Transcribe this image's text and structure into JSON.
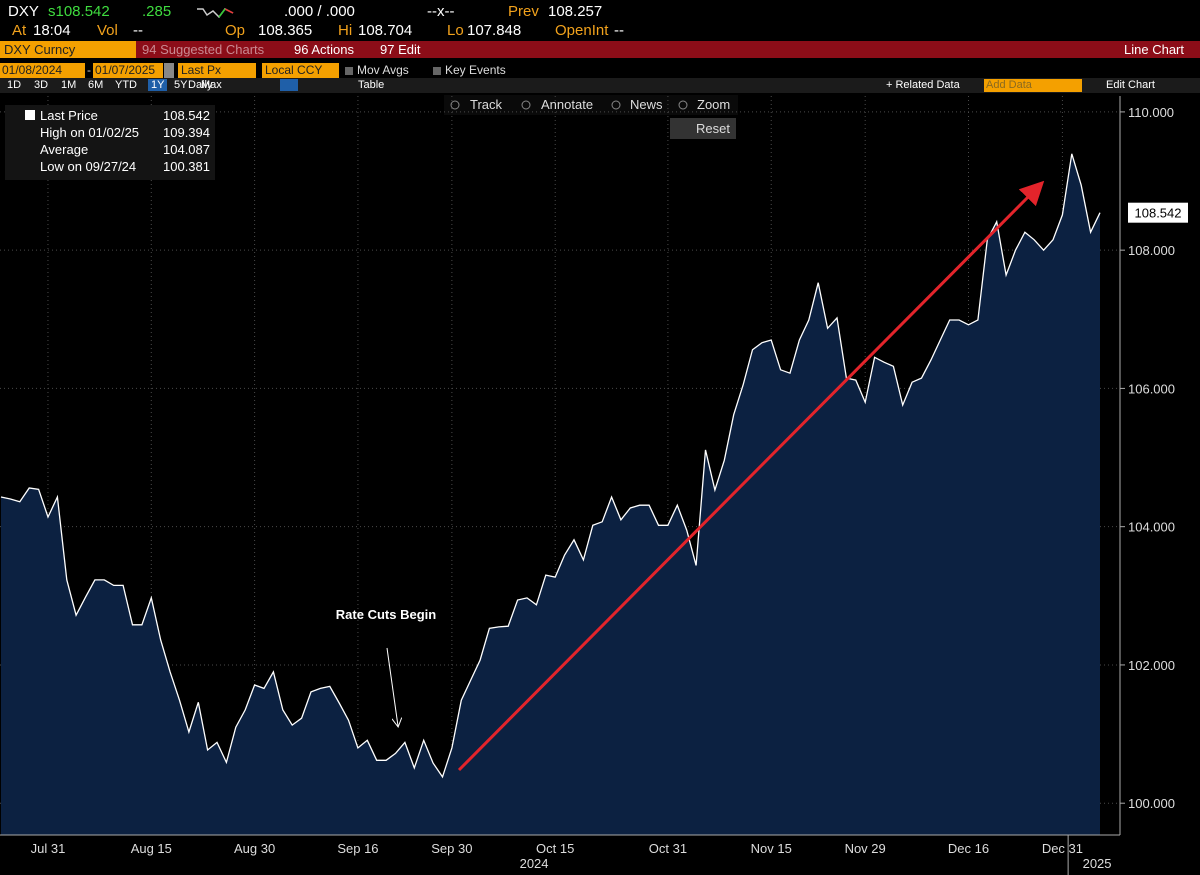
{
  "header": {
    "row1": [
      "DXY",
      "s108.542",
      ".285",
      ".000 / .000",
      "--x--",
      "Prev",
      "108.257"
    ],
    "row2": [
      "At",
      "18:04",
      "Vol",
      "--",
      "Op",
      "108.365",
      "Hi",
      "108.704",
      "Lo",
      "107.848",
      "OpenInt",
      "--"
    ]
  },
  "menu_bar": {
    "ticker": "DXY Curncy",
    "suggested": "94 Suggested Charts",
    "actions": "96 Actions",
    "edit": "97 Edit",
    "chart_kind": "Line Chart"
  },
  "settings_bar": {
    "start_date": "01/08/2024",
    "dash": "-",
    "end_date": "01/07/2025",
    "field": "Last Px",
    "currency": "Local CCY",
    "mov_avgs": "Mov Avgs",
    "key_events": "Key Events"
  },
  "period_bar": {
    "periods": [
      "1D",
      "3D",
      "1M",
      "6M",
      "YTD",
      "1Y",
      "5Y",
      "Max"
    ],
    "frequency": "Daily",
    "table": "Table",
    "related": "+ Related Data",
    "add_data": "Add Data",
    "edit_chart": "Edit Chart"
  },
  "toolbar": {
    "track": "Track",
    "annotate": "Annotate",
    "news": "News",
    "zoom": "Zoom",
    "reset": "Reset"
  },
  "chart_data": {
    "type": "line",
    "annotation": "Rate Cuts Begin",
    "years": [
      "2024",
      "2025"
    ],
    "stats": [
      {
        "label": "High on 01/02/25",
        "value": 109.394
      },
      {
        "label": "Average",
        "value": 104.087
      },
      {
        "label": "Low on 09/27/24",
        "value": 100.381
      }
    ],
    "categories": [
      null,
      null,
      null,
      null,
      null,
      "Jul 31",
      null,
      null,
      null,
      null,
      null,
      null,
      null,
      null,
      null,
      null,
      "Aug 15",
      null,
      null,
      null,
      null,
      null,
      null,
      null,
      null,
      null,
      null,
      "Aug 30",
      null,
      null,
      null,
      null,
      null,
      null,
      null,
      null,
      null,
      null,
      "Sep 16",
      null,
      null,
      null,
      null,
      null,
      null,
      null,
      null,
      null,
      "Sep 30",
      null,
      null,
      null,
      null,
      null,
      null,
      null,
      null,
      null,
      null,
      "Oct 15",
      null,
      null,
      null,
      null,
      null,
      null,
      null,
      null,
      null,
      null,
      null,
      "Oct 31",
      null,
      null,
      null,
      null,
      null,
      null,
      null,
      null,
      null,
      null,
      "Nov 15",
      null,
      null,
      null,
      null,
      null,
      null,
      null,
      null,
      null,
      "Nov 29",
      null,
      null,
      null,
      null,
      null,
      null,
      null,
      null,
      null,
      null,
      "Dec 16",
      null,
      null,
      null,
      null,
      null,
      null,
      null,
      null,
      null,
      "Dec 31",
      null,
      null,
      null,
      null
    ],
    "series": [
      {
        "name": "Last Price",
        "color": "#ffffff",
        "fill": "#0c2141",
        "values": [
          104.43,
          104.4,
          104.36,
          104.56,
          104.54,
          104.14,
          104.43,
          103.23,
          102.72,
          102.98,
          103.23,
          103.23,
          103.15,
          103.15,
          102.58,
          102.58,
          102.97,
          102.36,
          101.9,
          101.49,
          101.03,
          101.46,
          100.77,
          100.88,
          100.59,
          101.1,
          101.35,
          101.71,
          101.66,
          101.9,
          101.35,
          101.13,
          101.23,
          101.61,
          101.66,
          101.69,
          101.45,
          101.2,
          100.8,
          100.91,
          100.62,
          100.62,
          100.72,
          100.88,
          100.51,
          100.91,
          100.58,
          100.381,
          100.8,
          101.49,
          101.78,
          102.07,
          102.53,
          102.55,
          102.56,
          102.94,
          102.97,
          102.87,
          103.3,
          103.27,
          103.59,
          103.81,
          103.52,
          104.02,
          104.07,
          104.43,
          104.1,
          104.27,
          104.31,
          104.31,
          104.02,
          104.02,
          104.31,
          103.95,
          103.44,
          105.11,
          104.53,
          104.96,
          105.62,
          106.05,
          106.56,
          106.66,
          106.7,
          106.27,
          106.22,
          106.7,
          106.99,
          107.53,
          106.87,
          107.02,
          106.15,
          106.12,
          105.8,
          106.45,
          106.38,
          106.32,
          105.76,
          106.09,
          106.15,
          106.41,
          106.7,
          106.99,
          106.99,
          106.92,
          106.99,
          108.15,
          108.41,
          107.64,
          108.0,
          108.26,
          108.15,
          108.0,
          108.15,
          108.51,
          109.394,
          108.94,
          108.26,
          108.542
        ]
      }
    ],
    "ylim": [
      99.54,
      110.23
    ],
    "yticks": [
      {
        "value": 100,
        "label": "100.000"
      },
      {
        "value": 102,
        "label": "102.000"
      },
      {
        "value": 104,
        "label": "104.000"
      },
      {
        "value": 106,
        "label": "106.000"
      },
      {
        "value": 108,
        "label": "108.000"
      },
      {
        "value": 110,
        "label": "110.000"
      }
    ],
    "y_axis_side": "right",
    "grid": true,
    "arrow_color": "#e3242b"
  }
}
